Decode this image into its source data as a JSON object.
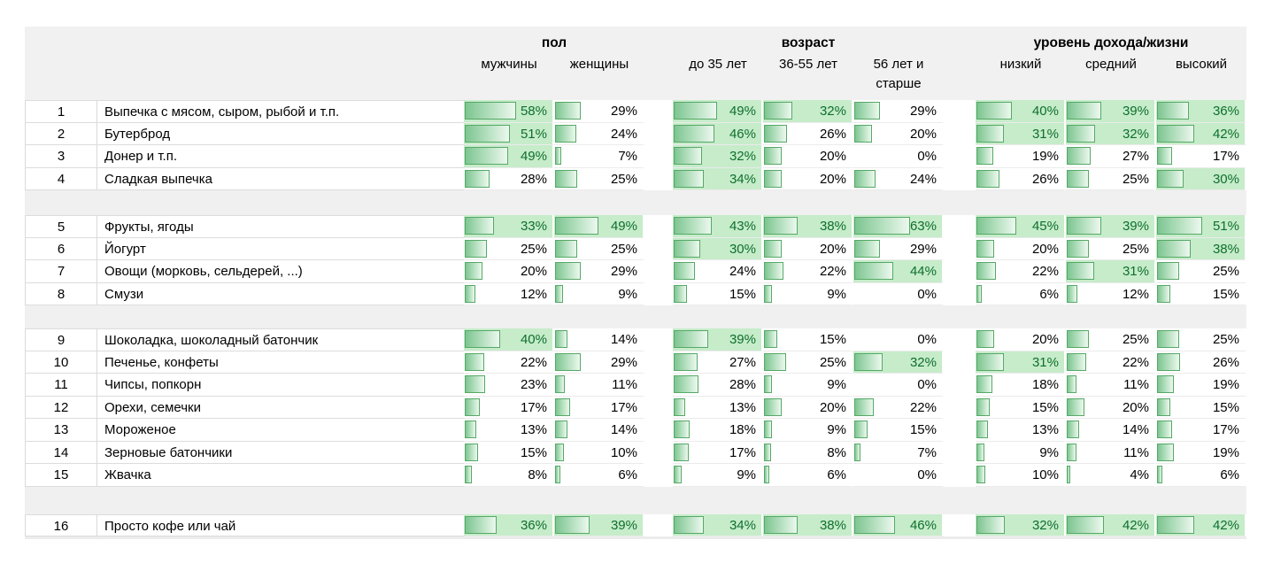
{
  "colors": {
    "bar_border": "#56a967",
    "bar_fill_left": "#7dc591",
    "bar_fill_right": "#edf8ef",
    "highlight_bg": "#c6ecca",
    "highlight_text": "#0e6f2c",
    "header_band_bg": "#f1f1f1"
  },
  "chart_data": {
    "type": "table",
    "unit": "%",
    "highlight_rule": "cell value >= threshold gets green fill and green text",
    "highlight_threshold": 30,
    "bar_scale_max": 100,
    "column_groups": [
      {
        "title": "пол",
        "columns": [
          "мужчины",
          "женщины"
        ]
      },
      {
        "title": "возраст",
        "columns": [
          "до 35 лет",
          "36-55 лет",
          "56 лет и старше"
        ]
      },
      {
        "title": "уровень дохода/жизни",
        "columns": [
          "низкий",
          "средний",
          "высокий"
        ]
      }
    ],
    "row_groups": [
      {
        "rows": [
          {
            "num": "1",
            "label": "Выпечка с мясом, сыром, рыбой и т.п.",
            "values": [
              58,
              29,
              49,
              32,
              29,
              40,
              39,
              36
            ]
          },
          {
            "num": "2",
            "label": "Бутерброд",
            "values": [
              51,
              24,
              46,
              26,
              20,
              31,
              32,
              42
            ]
          },
          {
            "num": "3",
            "label": "Донер и т.п.",
            "values": [
              49,
              7,
              32,
              20,
              0,
              19,
              27,
              17
            ]
          },
          {
            "num": "4",
            "label": "Сладкая выпечка",
            "values": [
              28,
              25,
              34,
              20,
              24,
              26,
              25,
              30
            ]
          }
        ]
      },
      {
        "rows": [
          {
            "num": "5",
            "label": "Фрукты, ягоды",
            "values": [
              33,
              49,
              43,
              38,
              63,
              45,
              39,
              51
            ]
          },
          {
            "num": "6",
            "label": "Йогурт",
            "values": [
              25,
              25,
              30,
              20,
              29,
              20,
              25,
              38
            ]
          },
          {
            "num": "7",
            "label": "Овощи (морковь, сельдерей, ...)",
            "values": [
              20,
              29,
              24,
              22,
              44,
              22,
              31,
              25
            ]
          },
          {
            "num": "8",
            "label": "Смузи",
            "values": [
              12,
              9,
              15,
              9,
              0,
              6,
              12,
              15
            ]
          }
        ]
      },
      {
        "rows": [
          {
            "num": "9",
            "label": "Шоколадка, шоколадный батончик",
            "values": [
              40,
              14,
              39,
              15,
              0,
              20,
              25,
              25
            ]
          },
          {
            "num": "10",
            "label": "Печенье, конфеты",
            "values": [
              22,
              29,
              27,
              25,
              32,
              31,
              22,
              26
            ]
          },
          {
            "num": "11",
            "label": "Чипсы, попкорн",
            "values": [
              23,
              11,
              28,
              9,
              0,
              18,
              11,
              19
            ]
          },
          {
            "num": "12",
            "label": "Орехи, семечки",
            "values": [
              17,
              17,
              13,
              20,
              22,
              15,
              20,
              15
            ]
          },
          {
            "num": "13",
            "label": "Мороженое",
            "values": [
              13,
              14,
              18,
              9,
              15,
              13,
              14,
              17
            ]
          },
          {
            "num": "14",
            "label": "Зерновые батончики",
            "values": [
              15,
              10,
              17,
              8,
              7,
              9,
              11,
              19
            ]
          },
          {
            "num": "15",
            "label": "Жвачка",
            "values": [
              8,
              6,
              9,
              6,
              0,
              10,
              4,
              6
            ]
          }
        ]
      },
      {
        "rows": [
          {
            "num": "16",
            "label": "Просто кофе или чай",
            "values": [
              36,
              39,
              34,
              38,
              46,
              32,
              42,
              42
            ]
          }
        ]
      }
    ]
  }
}
